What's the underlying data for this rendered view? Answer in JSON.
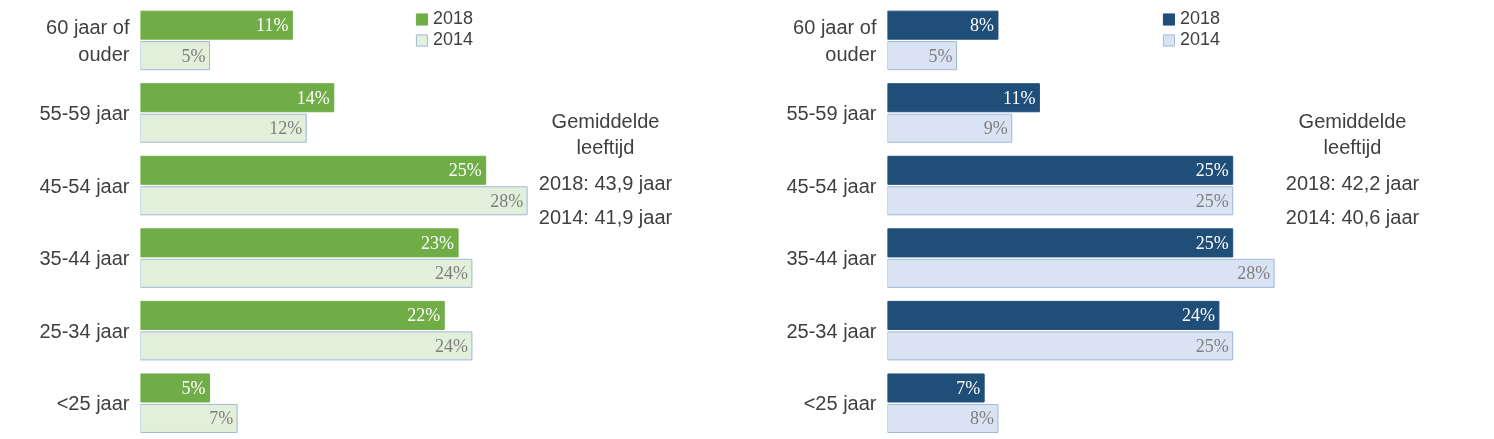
{
  "chart_data": [
    {
      "type": "bar",
      "orientation": "horizontal",
      "categories": [
        "60 jaar of ouder",
        "55-59 jaar",
        "45-54 jaar",
        "35-44 jaar",
        "25-34 jaar",
        "<25 jaar"
      ],
      "series": [
        {
          "name": "2018",
          "color": "#70ad47",
          "values": [
            11,
            14,
            25,
            23,
            22,
            5
          ],
          "value_labels": [
            "11%",
            "14%",
            "25%",
            "23%",
            "22%",
            "5%"
          ]
        },
        {
          "name": "2014",
          "color": "#e2efda",
          "values": [
            5,
            12,
            28,
            24,
            24,
            7
          ],
          "value_labels": [
            "5%",
            "12%",
            "28%",
            "24%",
            "24%",
            "7%"
          ]
        }
      ],
      "legend": "top",
      "grid": false,
      "tick_labels": "y",
      "annotations": [
        "Gemiddelde leeftijd",
        "2018: 43,9 jaar",
        "2014: 41,9 jaar"
      ]
    },
    {
      "type": "bar",
      "orientation": "horizontal",
      "categories": [
        "60 jaar of ouder",
        "55-59 jaar",
        "45-54 jaar",
        "35-44 jaar",
        "25-34 jaar",
        "<25 jaar"
      ],
      "series": [
        {
          "name": "2018",
          "color": "#1f4e79",
          "values": [
            8,
            11,
            25,
            25,
            24,
            7
          ],
          "value_labels": [
            "8%",
            "11%",
            "25%",
            "25%",
            "24%",
            "7%"
          ]
        },
        {
          "name": "2014",
          "color": "#dae3f3",
          "values": [
            5,
            9,
            25,
            28,
            25,
            8
          ],
          "value_labels": [
            "5%",
            "9%",
            "25%",
            "28%",
            "25%",
            "8%"
          ]
        }
      ],
      "legend": "top",
      "grid": false,
      "tick_labels": "y",
      "annotations": [
        "Gemiddelde leeftijd",
        "2018: 42,2 jaar",
        "2014: 40,6 jaar"
      ]
    }
  ]
}
